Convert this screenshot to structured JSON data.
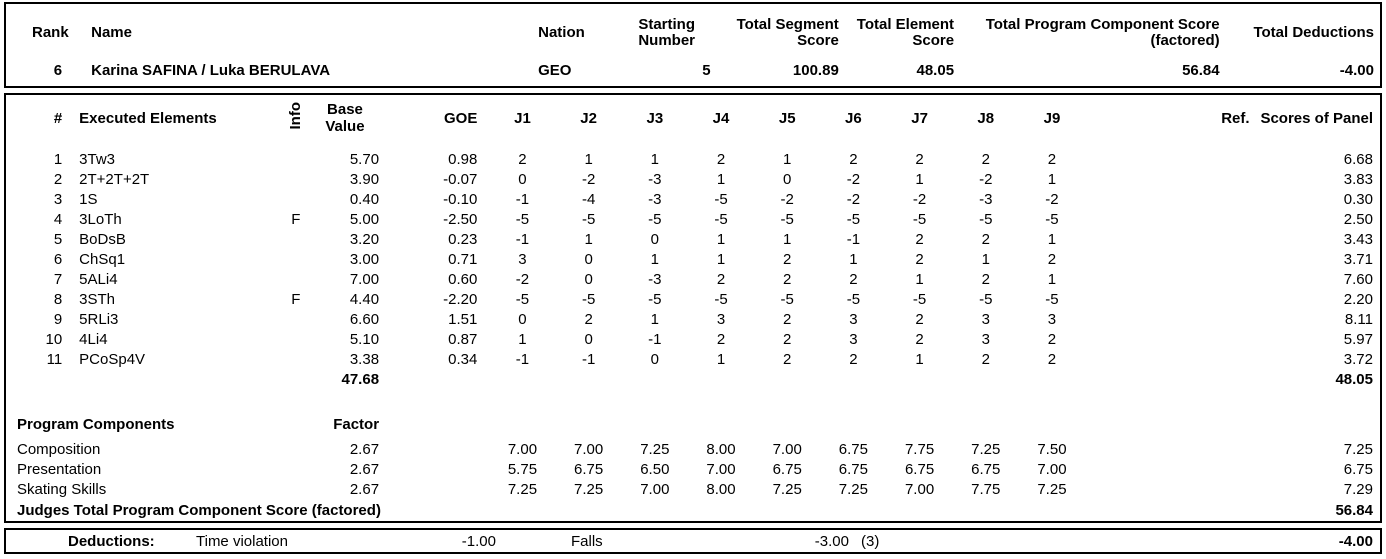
{
  "header": {
    "rank_label": "Rank",
    "name_label": "Name",
    "nation_label": "Nation",
    "starting_number_label": "Starting Number",
    "total_segment_label": "Total Segment Score",
    "total_element_label": "Total Element Score",
    "total_pcs_label": "Total Program Component Score (factored)",
    "total_deductions_label": "Total Deductions",
    "entry": {
      "rank": "6",
      "name": "Karina SAFINA / Luka BERULAVA",
      "nation": "GEO",
      "starting_number": "5",
      "total_segment_score": "100.89",
      "total_element_score": "48.05",
      "total_pcs_factored": "56.84",
      "total_deductions": "-4.00"
    }
  },
  "elements": {
    "headers": {
      "num": "#",
      "name": "Executed Elements",
      "info": "Info",
      "base": "Base Value",
      "goe": "GOE",
      "judges": [
        "J1",
        "J2",
        "J3",
        "J4",
        "J5",
        "J6",
        "J7",
        "J8",
        "J9"
      ],
      "ref": "Ref.",
      "panel": "Scores of Panel"
    },
    "rows": [
      {
        "num": "1",
        "name": "3Tw3",
        "info": "",
        "base": "5.70",
        "goe": "0.98",
        "j": [
          "2",
          "1",
          "1",
          "2",
          "1",
          "2",
          "2",
          "2",
          "2"
        ],
        "ref": "",
        "panel": "6.68"
      },
      {
        "num": "2",
        "name": "2T+2T+2T",
        "info": "",
        "base": "3.90",
        "goe": "-0.07",
        "j": [
          "0",
          "-2",
          "-3",
          "1",
          "0",
          "-2",
          "1",
          "-2",
          "1"
        ],
        "ref": "",
        "panel": "3.83"
      },
      {
        "num": "3",
        "name": "1S",
        "info": "",
        "base": "0.40",
        "goe": "-0.10",
        "j": [
          "-1",
          "-4",
          "-3",
          "-5",
          "-2",
          "-2",
          "-2",
          "-3",
          "-2"
        ],
        "ref": "",
        "panel": "0.30"
      },
      {
        "num": "4",
        "name": "3LoTh",
        "info": "F",
        "base": "5.00",
        "goe": "-2.50",
        "j": [
          "-5",
          "-5",
          "-5",
          "-5",
          "-5",
          "-5",
          "-5",
          "-5",
          "-5"
        ],
        "ref": "",
        "panel": "2.50"
      },
      {
        "num": "5",
        "name": "BoDsB",
        "info": "",
        "base": "3.20",
        "goe": "0.23",
        "j": [
          "-1",
          "1",
          "0",
          "1",
          "1",
          "-1",
          "2",
          "2",
          "1"
        ],
        "ref": "",
        "panel": "3.43"
      },
      {
        "num": "6",
        "name": "ChSq1",
        "info": "",
        "base": "3.00",
        "goe": "0.71",
        "j": [
          "3",
          "0",
          "1",
          "1",
          "2",
          "1",
          "2",
          "1",
          "2"
        ],
        "ref": "",
        "panel": "3.71"
      },
      {
        "num": "7",
        "name": "5ALi4",
        "info": "",
        "base": "7.00",
        "goe": "0.60",
        "j": [
          "-2",
          "0",
          "-3",
          "2",
          "2",
          "2",
          "1",
          "2",
          "1"
        ],
        "ref": "",
        "panel": "7.60"
      },
      {
        "num": "8",
        "name": "3STh",
        "info": "F",
        "base": "4.40",
        "goe": "-2.20",
        "j": [
          "-5",
          "-5",
          "-5",
          "-5",
          "-5",
          "-5",
          "-5",
          "-5",
          "-5"
        ],
        "ref": "",
        "panel": "2.20"
      },
      {
        "num": "9",
        "name": "5RLi3",
        "info": "",
        "base": "6.60",
        "goe": "1.51",
        "j": [
          "0",
          "2",
          "1",
          "3",
          "2",
          "3",
          "2",
          "3",
          "3"
        ],
        "ref": "",
        "panel": "8.11"
      },
      {
        "num": "10",
        "name": "4Li4",
        "info": "",
        "base": "5.10",
        "goe": "0.87",
        "j": [
          "1",
          "0",
          "-1",
          "2",
          "2",
          "3",
          "2",
          "3",
          "2"
        ],
        "ref": "",
        "panel": "5.97"
      },
      {
        "num": "11",
        "name": "PCoSp4V",
        "info": "",
        "base": "3.38",
        "goe": "0.34",
        "j": [
          "-1",
          "-1",
          "0",
          "1",
          "2",
          "2",
          "1",
          "2",
          "2"
        ],
        "ref": "",
        "panel": "3.72"
      }
    ],
    "base_total": "47.68",
    "panel_total": "48.05"
  },
  "components": {
    "title": "Program Components",
    "factor_label": "Factor",
    "rows": [
      {
        "name": "Composition",
        "factor": "2.67",
        "j": [
          "7.00",
          "7.00",
          "7.25",
          "8.00",
          "7.00",
          "6.75",
          "7.75",
          "7.25",
          "7.50"
        ],
        "panel": "7.25"
      },
      {
        "name": "Presentation",
        "factor": "2.67",
        "j": [
          "5.75",
          "6.75",
          "6.50",
          "7.00",
          "6.75",
          "6.75",
          "6.75",
          "6.75",
          "7.00"
        ],
        "panel": "6.75"
      },
      {
        "name": "Skating Skills",
        "factor": "2.67",
        "j": [
          "7.25",
          "7.25",
          "7.00",
          "8.00",
          "7.25",
          "7.25",
          "7.00",
          "7.75",
          "7.25"
        ],
        "panel": "7.29"
      }
    ],
    "total_label": "Judges Total Program Component Score (factored)",
    "total": "56.84"
  },
  "deductions": {
    "label": "Deductions:",
    "items": [
      {
        "name": "Time violation",
        "value": "-1.00"
      },
      {
        "name": "Falls",
        "value": "-3.00",
        "count": "(3)"
      }
    ],
    "total": "-4.00"
  }
}
